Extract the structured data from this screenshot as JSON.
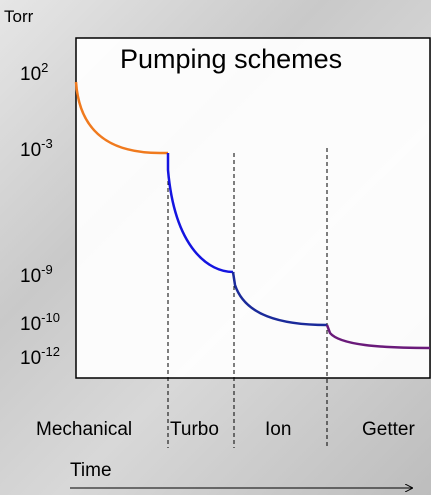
{
  "y_unit": "Torr",
  "title": "Pumping schemes",
  "y_labels": [
    {
      "base": "10",
      "exponent": "2"
    },
    {
      "base": "10",
      "exponent": "-3"
    },
    {
      "base": "10",
      "exponent": "-9"
    },
    {
      "base": "10",
      "exponent": "-10"
    },
    {
      "base": "10",
      "exponent": "-12"
    }
  ],
  "stages": [
    "Mechanical",
    "Turbo",
    "Ion",
    "Getter"
  ],
  "x_label": "Time"
}
